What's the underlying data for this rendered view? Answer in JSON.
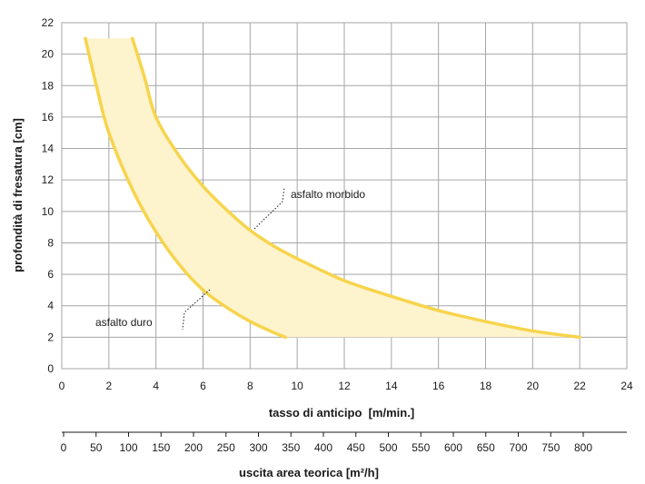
{
  "chart_data": {
    "type": "area",
    "xlabel": "tasso di anticipo  [m/min.]",
    "ylabel": "profondità di fresatura [cm]",
    "xlim": [
      0,
      24
    ],
    "ylim": [
      0,
      22
    ],
    "x_ticks": [
      0,
      2,
      4,
      6,
      8,
      10,
      12,
      14,
      16,
      18,
      20,
      22,
      24
    ],
    "y_ticks": [
      0,
      2,
      4,
      6,
      8,
      10,
      12,
      14,
      16,
      18,
      20,
      22
    ],
    "grid": true,
    "secondary_axis": {
      "label": "uscita area teorica [m²/h]",
      "ticks": [
        0,
        50,
        100,
        150,
        200,
        250,
        300,
        350,
        400,
        450,
        500,
        550,
        600,
        650,
        700,
        750,
        800
      ]
    },
    "series": [
      {
        "name": "asfalto morbido",
        "x": [
          3.0,
          3.5,
          4.0,
          5.0,
          6.0,
          7.0,
          8.0,
          9.0,
          10.0,
          12.0,
          14.0,
          16.0,
          18.0,
          20.0,
          22.0
        ],
        "y": [
          21.0,
          18.6,
          16.0,
          13.5,
          11.6,
          10.1,
          8.8,
          7.8,
          7.0,
          5.6,
          4.6,
          3.7,
          3.0,
          2.4,
          2.0
        ]
      },
      {
        "name": "asfalto duro",
        "x": [
          1.0,
          1.5,
          2.0,
          3.0,
          4.0,
          5.0,
          6.0,
          7.0,
          8.0,
          9.0,
          9.5
        ],
        "y": [
          21.0,
          17.8,
          15.0,
          11.4,
          8.7,
          6.6,
          5.0,
          3.9,
          3.0,
          2.3,
          2.0
        ]
      }
    ],
    "fill_between": true,
    "fill_color": "#fdf3cc",
    "line_color": "#f7d44c",
    "annotations": [
      {
        "text": "asfalto morbido",
        "target_series": "asfalto morbido"
      },
      {
        "text": "asfalto duro",
        "target_series": "asfalto duro"
      }
    ]
  }
}
